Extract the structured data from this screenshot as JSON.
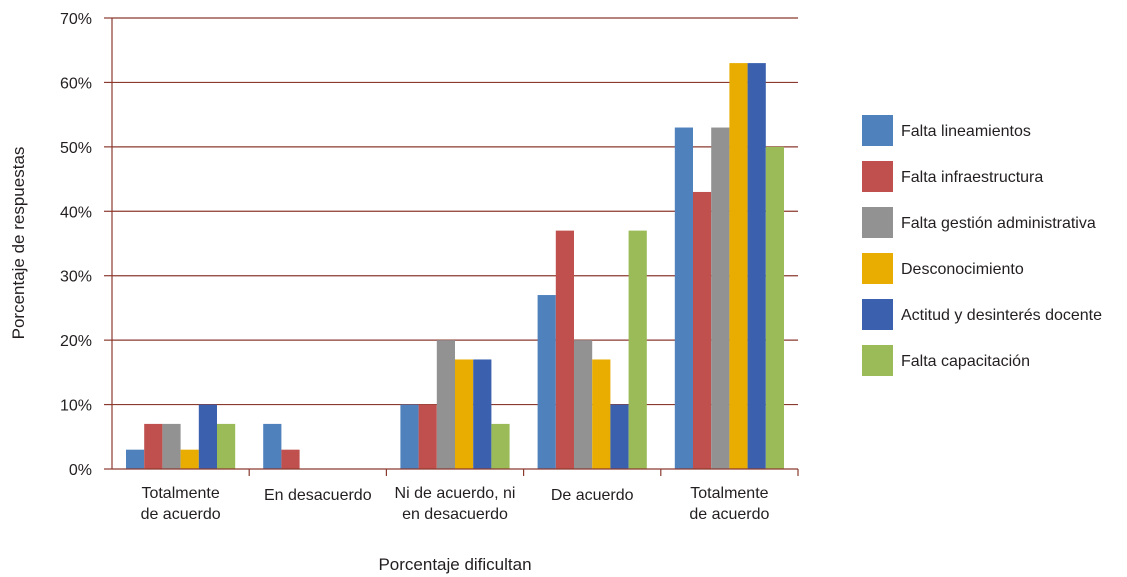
{
  "chart_data": {
    "type": "bar",
    "title": "",
    "xlabel": "Porcentaje dificultan",
    "ylabel": "Porcentaje de respuestas",
    "ylim": [
      0,
      70
    ],
    "yticks": [
      0,
      10,
      20,
      30,
      40,
      50,
      60,
      70
    ],
    "ytick_labels": [
      "0%",
      "10%",
      "20%",
      "30%",
      "40%",
      "50%",
      "60%",
      "70%"
    ],
    "grid": true,
    "legend_position": "right",
    "categories": [
      [
        "Totalmente",
        "de acuerdo"
      ],
      [
        "En desacuerdo"
      ],
      [
        "Ni de acuerdo, ni",
        "en desacuerdo"
      ],
      [
        "De acuerdo"
      ],
      [
        "Totalmente",
        "de acuerdo"
      ]
    ],
    "series": [
      {
        "name": "Falta lineamientos",
        "color": "#4f81bd",
        "values": [
          3,
          7,
          10,
          27,
          53
        ]
      },
      {
        "name": "Falta infraestructura",
        "color": "#c0504d",
        "values": [
          7,
          3,
          10,
          37,
          43
        ]
      },
      {
        "name": "Falta gestión administrativa",
        "color": "#929292",
        "values": [
          7,
          0,
          20,
          20,
          53
        ]
      },
      {
        "name": "Desconocimiento",
        "color": "#e8ad00",
        "values": [
          3,
          0,
          17,
          17,
          63
        ]
      },
      {
        "name": "Actitud y desinterés docente",
        "color": "#3a60ae",
        "values": [
          10,
          0,
          17,
          10,
          63
        ]
      },
      {
        "name": "Falta capacitación",
        "color": "#9bbb59",
        "values": [
          7,
          0,
          7,
          37,
          50
        ]
      }
    ],
    "gridline_color": "#8b3a2f"
  }
}
